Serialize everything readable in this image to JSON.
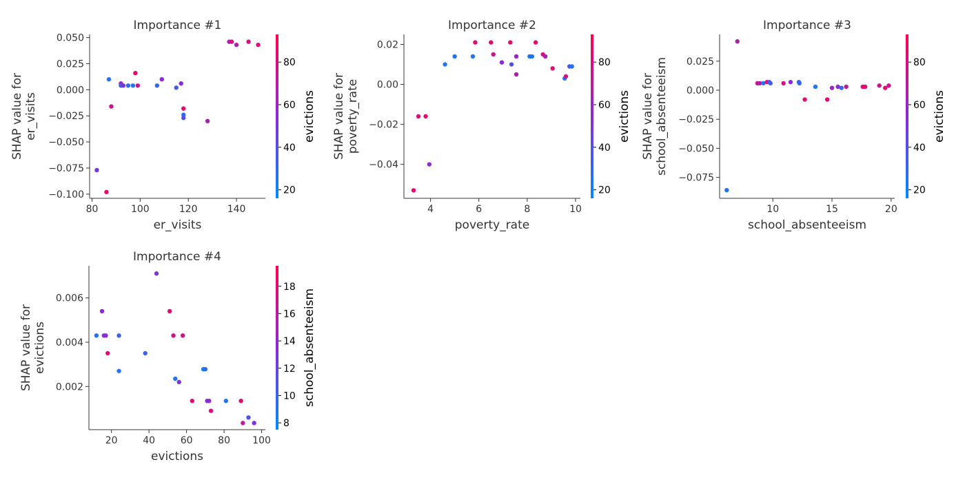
{
  "colors": {
    "low": "#008bfb",
    "mid": "#8a2bd6",
    "high": "#ff0052",
    "text": "#333333"
  },
  "chart_data": [
    {
      "type": "scatter",
      "title": "Importance #1",
      "xlabel": "er_visits",
      "ylabel": [
        "SHAP value for",
        "er_visits"
      ],
      "xlim": [
        79,
        152
      ],
      "ylim": [
        -0.104,
        0.053
      ],
      "xticks": [
        80,
        100,
        120,
        140
      ],
      "xtick_labels": [
        "80",
        "100",
        "120",
        "140"
      ],
      "yticks": [
        -0.1,
        -0.075,
        -0.05,
        -0.025,
        0.0,
        0.025,
        0.05
      ],
      "ytick_labels": [
        "−0.100",
        "−0.075",
        "−0.050",
        "−0.025",
        "0.000",
        "0.025",
        "0.050"
      ],
      "color_feature": "evictions",
      "color_range": [
        16,
        93
      ],
      "colorbar_ticks": [
        20,
        40,
        60,
        80
      ],
      "points": [
        {
          "x": 82,
          "y": -0.077,
          "c": 50
        },
        {
          "x": 86,
          "y": -0.098,
          "c": 85
        },
        {
          "x": 87,
          "y": 0.01,
          "c": 25
        },
        {
          "x": 88,
          "y": -0.016,
          "c": 75
        },
        {
          "x": 92,
          "y": 0.006,
          "c": 60
        },
        {
          "x": 92,
          "y": 0.004,
          "c": 35
        },
        {
          "x": 93,
          "y": 0.004,
          "c": 50
        },
        {
          "x": 95,
          "y": 0.004,
          "c": 30
        },
        {
          "x": 97,
          "y": 0.004,
          "c": 25
        },
        {
          "x": 98,
          "y": 0.016,
          "c": 85
        },
        {
          "x": 99,
          "y": 0.004,
          "c": 75
        },
        {
          "x": 107,
          "y": 0.004,
          "c": 30
        },
        {
          "x": 109,
          "y": 0.01,
          "c": 55
        },
        {
          "x": 115,
          "y": 0.002,
          "c": 35
        },
        {
          "x": 117,
          "y": 0.006,
          "c": 55
        },
        {
          "x": 118,
          "y": -0.018,
          "c": 85
        },
        {
          "x": 118,
          "y": -0.024,
          "c": 30
        },
        {
          "x": 118,
          "y": -0.027,
          "c": 40
        },
        {
          "x": 128,
          "y": -0.03,
          "c": 65
        },
        {
          "x": 137,
          "y": 0.046,
          "c": 65
        },
        {
          "x": 138,
          "y": 0.046,
          "c": 80
        },
        {
          "x": 140,
          "y": 0.043,
          "c": 65
        },
        {
          "x": 145,
          "y": 0.046,
          "c": 80
        },
        {
          "x": 149,
          "y": 0.043,
          "c": 80
        }
      ]
    },
    {
      "type": "scatter",
      "title": "Importance #2",
      "xlabel": "poverty_rate",
      "ylabel": [
        "SHAP value for",
        "poverty_rate"
      ],
      "xlim": [
        2.9,
        10.2
      ],
      "ylim": [
        -0.057,
        0.025
      ],
      "xticks": [
        4,
        6,
        8,
        10
      ],
      "xtick_labels": [
        "4",
        "6",
        "8",
        "10"
      ],
      "yticks": [
        -0.04,
        -0.02,
        0.0,
        0.02
      ],
      "ytick_labels": [
        "−0.04",
        "−0.02",
        "0.00",
        "0.02"
      ],
      "color_feature": "evictions",
      "color_range": [
        16,
        93
      ],
      "colorbar_ticks": [
        20,
        40,
        60,
        80
      ],
      "points": [
        {
          "x": 3.3,
          "y": -0.053,
          "c": 85
        },
        {
          "x": 3.5,
          "y": -0.016,
          "c": 80
        },
        {
          "x": 3.8,
          "y": -0.016,
          "c": 85
        },
        {
          "x": 3.95,
          "y": -0.04,
          "c": 55
        },
        {
          "x": 4.6,
          "y": 0.01,
          "c": 25
        },
        {
          "x": 5.0,
          "y": 0.014,
          "c": 25
        },
        {
          "x": 5.75,
          "y": 0.014,
          "c": 25
        },
        {
          "x": 5.85,
          "y": 0.021,
          "c": 85
        },
        {
          "x": 6.5,
          "y": 0.021,
          "c": 85
        },
        {
          "x": 6.6,
          "y": 0.015,
          "c": 75
        },
        {
          "x": 6.95,
          "y": 0.011,
          "c": 55
        },
        {
          "x": 7.3,
          "y": 0.021,
          "c": 85
        },
        {
          "x": 7.35,
          "y": 0.01,
          "c": 40
        },
        {
          "x": 7.55,
          "y": 0.014,
          "c": 60
        },
        {
          "x": 7.55,
          "y": 0.005,
          "c": 65
        },
        {
          "x": 8.1,
          "y": 0.014,
          "c": 25
        },
        {
          "x": 8.2,
          "y": 0.014,
          "c": 25
        },
        {
          "x": 8.35,
          "y": 0.021,
          "c": 85
        },
        {
          "x": 8.65,
          "y": 0.015,
          "c": 80
        },
        {
          "x": 8.75,
          "y": 0.014,
          "c": 65
        },
        {
          "x": 9.05,
          "y": 0.008,
          "c": 85
        },
        {
          "x": 9.55,
          "y": 0.003,
          "c": 25
        },
        {
          "x": 9.6,
          "y": 0.004,
          "c": 80
        },
        {
          "x": 9.75,
          "y": 0.009,
          "c": 35
        },
        {
          "x": 9.85,
          "y": 0.009,
          "c": 25
        }
      ]
    },
    {
      "type": "scatter",
      "title": "Importance #3",
      "xlabel": "school_absenteeism",
      "ylabel": [
        "SHAP value for",
        "school_absenteeism"
      ],
      "xlim": [
        5.5,
        20.3
      ],
      "ylim": [
        -0.093,
        0.048
      ],
      "xticks": [
        10,
        15,
        20
      ],
      "xtick_labels": [
        "10",
        "15",
        "20"
      ],
      "yticks": [
        -0.075,
        -0.05,
        -0.025,
        0.0,
        0.025
      ],
      "ytick_labels": [
        "−0.075",
        "−0.050",
        "−0.025",
        "0.000",
        "0.025"
      ],
      "color_feature": "evictions",
      "color_range": [
        16,
        93
      ],
      "colorbar_ticks": [
        20,
        40,
        60,
        80
      ],
      "points": [
        {
          "x": 6.1,
          "y": -0.086,
          "c": 25
        },
        {
          "x": 7.0,
          "y": 0.042,
          "c": 65
        },
        {
          "x": 8.7,
          "y": 0.006,
          "c": 75
        },
        {
          "x": 8.9,
          "y": 0.006,
          "c": 65
        },
        {
          "x": 9.2,
          "y": 0.006,
          "c": 25
        },
        {
          "x": 9.5,
          "y": 0.007,
          "c": 80
        },
        {
          "x": 9.7,
          "y": 0.007,
          "c": 40
        },
        {
          "x": 9.8,
          "y": 0.006,
          "c": 35
        },
        {
          "x": 10.9,
          "y": 0.006,
          "c": 80
        },
        {
          "x": 11.5,
          "y": 0.007,
          "c": 55
        },
        {
          "x": 12.2,
          "y": 0.007,
          "c": 35
        },
        {
          "x": 12.25,
          "y": 0.006,
          "c": 30
        },
        {
          "x": 12.7,
          "y": -0.008,
          "c": 85
        },
        {
          "x": 13.6,
          "y": 0.003,
          "c": 25
        },
        {
          "x": 14.6,
          "y": -0.008,
          "c": 85
        },
        {
          "x": 15.0,
          "y": 0.002,
          "c": 60
        },
        {
          "x": 15.5,
          "y": 0.003,
          "c": 55
        },
        {
          "x": 15.8,
          "y": 0.002,
          "c": 30
        },
        {
          "x": 16.2,
          "y": 0.003,
          "c": 70
        },
        {
          "x": 17.6,
          "y": 0.003,
          "c": 80
        },
        {
          "x": 17.8,
          "y": 0.003,
          "c": 85
        },
        {
          "x": 19.0,
          "y": 0.004,
          "c": 75
        },
        {
          "x": 19.5,
          "y": 0.002,
          "c": 85
        },
        {
          "x": 19.8,
          "y": 0.004,
          "c": 75
        }
      ]
    },
    {
      "type": "scatter",
      "title": "Importance #4",
      "xlabel": "evictions",
      "ylabel": [
        "SHAP value for",
        "evictions"
      ],
      "xlim": [
        8,
        102
      ],
      "ylim": [
        5e-05,
        0.00745
      ],
      "xticks": [
        20,
        40,
        60,
        80,
        100
      ],
      "xtick_labels": [
        "20",
        "40",
        "60",
        "80",
        "100"
      ],
      "yticks": [
        0.002,
        0.004,
        0.006
      ],
      "ytick_labels": [
        "0.002",
        "0.004",
        "0.006"
      ],
      "color_feature": "school_absenteeism",
      "color_range": [
        7.5,
        19.5
      ],
      "colorbar_ticks": [
        8,
        10,
        12,
        14,
        16,
        18
      ],
      "points": [
        {
          "x": 12,
          "y": 0.0043,
          "c": 9
        },
        {
          "x": 15,
          "y": 0.0054,
          "c": 14
        },
        {
          "x": 16,
          "y": 0.0043,
          "c": 13
        },
        {
          "x": 17,
          "y": 0.0043,
          "c": 13.5
        },
        {
          "x": 18,
          "y": 0.0035,
          "c": 18
        },
        {
          "x": 24,
          "y": 0.0043,
          "c": 10
        },
        {
          "x": 24,
          "y": 0.0027,
          "c": 9
        },
        {
          "x": 38,
          "y": 0.0035,
          "c": 10
        },
        {
          "x": 44,
          "y": 0.0071,
          "c": 13
        },
        {
          "x": 51,
          "y": 0.0054,
          "c": 18
        },
        {
          "x": 53,
          "y": 0.0043,
          "c": 17
        },
        {
          "x": 54,
          "y": 0.00235,
          "c": 9
        },
        {
          "x": 56,
          "y": 0.0022,
          "c": 13
        },
        {
          "x": 58,
          "y": 0.0043,
          "c": 17
        },
        {
          "x": 63,
          "y": 0.00135,
          "c": 18
        },
        {
          "x": 69,
          "y": 0.00278,
          "c": 8.5
        },
        {
          "x": 70,
          "y": 0.00278,
          "c": 9.5
        },
        {
          "x": 71,
          "y": 0.00135,
          "c": 13
        },
        {
          "x": 72,
          "y": 0.00135,
          "c": 14
        },
        {
          "x": 73,
          "y": 0.0009,
          "c": 18
        },
        {
          "x": 81,
          "y": 0.00135,
          "c": 9
        },
        {
          "x": 89,
          "y": 0.00135,
          "c": 18
        },
        {
          "x": 90,
          "y": 0.00035,
          "c": 16
        },
        {
          "x": 93,
          "y": 0.0006,
          "c": 11
        },
        {
          "x": 96,
          "y": 0.00035,
          "c": 13
        }
      ]
    }
  ]
}
